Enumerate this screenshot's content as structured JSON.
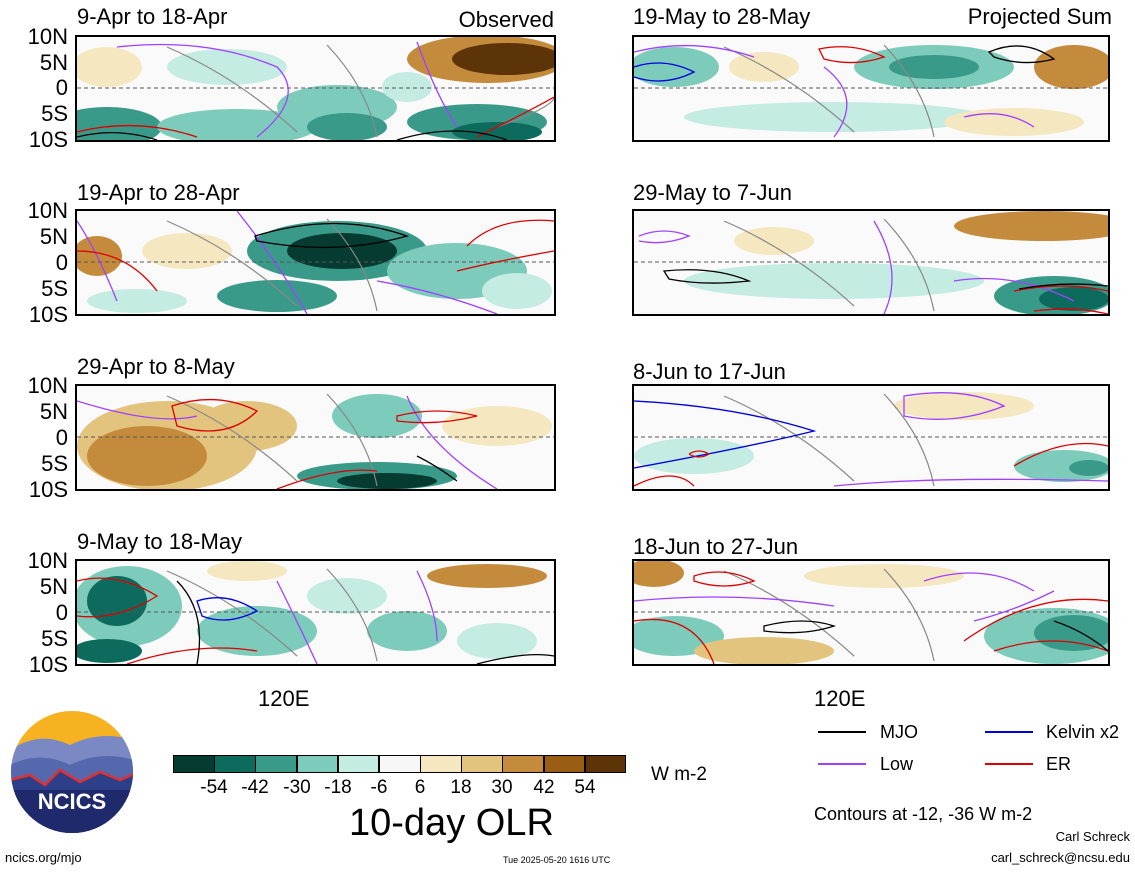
{
  "observed_label": "Observed",
  "projected_label": "Projected Sum",
  "lat_labels": [
    "10N",
    "5N",
    "0",
    "5S",
    "10S"
  ],
  "lon_label": "120E",
  "panels_left": [
    {
      "title": "9-Apr to 18-Apr"
    },
    {
      "title": "19-Apr to 28-Apr"
    },
    {
      "title": "29-Apr to 8-May"
    },
    {
      "title": "9-May to 18-May"
    }
  ],
  "panels_right": [
    {
      "title": "19-May to 28-May"
    },
    {
      "title": "29-May to 7-Jun"
    },
    {
      "title": "8-Jun to 17-Jun"
    },
    {
      "title": "18-Jun to 27-Jun"
    }
  ],
  "colorbar": {
    "colors": [
      "#053b30",
      "#0d6b5e",
      "#3a9a8a",
      "#7ccbbb",
      "#c4ece2",
      "#f7f7f7",
      "#f5e7c0",
      "#e2c47e",
      "#c48b3c",
      "#9a5d14",
      "#5c3407"
    ],
    "ticks": [
      "-54",
      "-42",
      "-30",
      "-18",
      "-6",
      "6",
      "18",
      "30",
      "42",
      "54"
    ],
    "units": "W m-2",
    "title": "10-day OLR"
  },
  "legend": [
    {
      "label": "MJO",
      "color": "#000000"
    },
    {
      "label": "Kelvin x2",
      "color": "#0000dd"
    },
    {
      "label": "Low",
      "color": "#a040ff"
    },
    {
      "label": "ER",
      "color": "#dd0000"
    }
  ],
  "contours_note": "Contours at -12, -36 W m-2",
  "author": "Carl Schreck",
  "email": "carl_schreck@ncsu.edu",
  "site": "ncics.org/mjo",
  "timestamp": "Tue 2025-05-20 1616 UTC",
  "logo_text": "NCICS"
}
